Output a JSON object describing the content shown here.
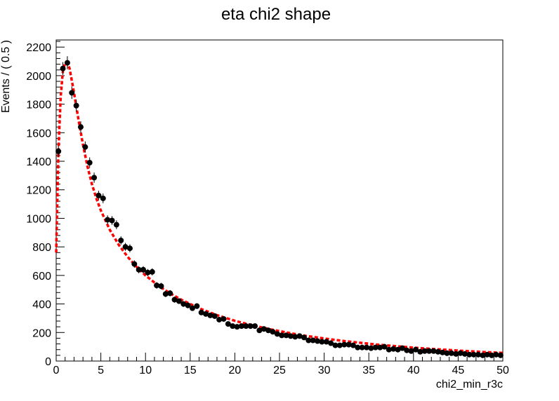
{
  "chart_data": {
    "type": "scatter",
    "title": "eta chi2 shape",
    "xlabel": "chi2_min_r3c",
    "ylabel": "Events / ( 0.5 )",
    "xlim": [
      0,
      50
    ],
    "ylim": [
      0,
      2250
    ],
    "x_ticks": [
      0,
      5,
      10,
      15,
      20,
      25,
      30,
      35,
      40,
      45,
      50
    ],
    "y_ticks": [
      0,
      200,
      400,
      600,
      800,
      1000,
      1200,
      1400,
      1600,
      1800,
      2000,
      2200
    ],
    "grid": false,
    "legend": "none",
    "colors": {
      "data_points": "#000000",
      "fit_curve": "#ff0000"
    },
    "series": [
      {
        "kind": "points_with_errorbars",
        "x": [
          0.25,
          0.75,
          1.25,
          1.75,
          2.25,
          2.75,
          3.25,
          3.75,
          4.25,
          4.75,
          5.25,
          5.75,
          6.25,
          6.75,
          7.25,
          7.75,
          8.25,
          8.75,
          9.25,
          9.75,
          10.25,
          10.75,
          11.25,
          11.75,
          12.25,
          12.75,
          13.25,
          13.75,
          14.25,
          14.75,
          15.25,
          15.75,
          16.25,
          16.75,
          17.25,
          17.75,
          18.25,
          18.75,
          19.25,
          19.75,
          20.25,
          20.75,
          21.25,
          21.75,
          22.25,
          22.75,
          23.25,
          23.75,
          24.25,
          24.75,
          25.25,
          25.75,
          26.25,
          26.75,
          27.25,
          27.75,
          28.25,
          28.75,
          29.25,
          29.75,
          30.25,
          30.75,
          31.25,
          31.75,
          32.25,
          32.75,
          33.25,
          33.75,
          34.25,
          34.75,
          35.25,
          35.75,
          36.25,
          36.75,
          37.25,
          37.75,
          38.25,
          38.75,
          39.25,
          39.75,
          40.25,
          40.75,
          41.25,
          41.75,
          42.25,
          42.75,
          43.25,
          43.75,
          44.25,
          44.75,
          45.25,
          45.75,
          46.25,
          46.75,
          47.25,
          47.75,
          48.25,
          48.75,
          49.25,
          49.75
        ],
        "y": [
          1470,
          2050,
          2090,
          1880,
          1790,
          1640,
          1500,
          1390,
          1285,
          1160,
          1140,
          990,
          985,
          955,
          845,
          800,
          790,
          680,
          640,
          640,
          620,
          625,
          530,
          525,
          470,
          475,
          430,
          420,
          400,
          390,
          370,
          385,
          340,
          330,
          320,
          315,
          290,
          295,
          260,
          245,
          240,
          245,
          245,
          245,
          245,
          215,
          225,
          215,
          205,
          190,
          180,
          180,
          175,
          170,
          175,
          165,
          145,
          145,
          140,
          135,
          135,
          125,
          110,
          110,
          115,
          115,
          110,
          95,
          95,
          95,
          90,
          95,
          95,
          100,
          80,
          85,
          80,
          90,
          75,
          70,
          80,
          65,
          70,
          70,
          70,
          65,
          60,
          55,
          55,
          50,
          55,
          50,
          45,
          45,
          45,
          40,
          45,
          40,
          45,
          40
        ],
        "error": [
          38,
          45,
          46,
          43,
          42,
          40,
          39,
          37,
          36,
          34,
          34,
          31,
          31,
          31,
          29,
          28,
          28,
          26,
          25,
          25,
          25,
          25,
          23,
          23,
          22,
          22,
          21,
          20,
          20,
          20,
          19,
          20,
          18,
          18,
          18,
          18,
          17,
          17,
          16,
          16,
          15,
          16,
          16,
          16,
          16,
          15,
          15,
          15,
          14,
          14,
          13,
          13,
          13,
          13,
          13,
          13,
          12,
          12,
          12,
          12,
          12,
          11,
          10,
          10,
          11,
          11,
          10,
          10,
          10,
          10,
          9,
          10,
          10,
          10,
          9,
          9,
          9,
          9,
          9,
          8,
          9,
          8,
          8,
          8,
          8,
          8,
          8,
          7,
          7,
          7,
          7,
          7,
          7,
          7,
          7,
          6,
          7,
          6,
          7,
          6
        ]
      },
      {
        "kind": "fit_curve",
        "x": [
          0,
          0.25,
          0.5,
          0.75,
          1,
          1.25,
          1.5,
          2,
          2.5,
          3,
          3.5,
          4,
          4.5,
          5,
          6,
          7,
          8,
          9,
          10,
          11,
          12,
          13,
          14,
          15,
          16,
          18,
          20,
          22,
          24,
          26,
          28,
          30,
          32,
          34,
          36,
          38,
          40,
          42,
          44,
          46,
          48,
          50
        ],
        "y": [
          760,
          1470,
          1850,
          2030,
          2090,
          2090,
          2050,
          1880,
          1690,
          1515,
          1365,
          1240,
          1140,
          1055,
          920,
          815,
          730,
          660,
          600,
          550,
          505,
          465,
          430,
          400,
          370,
          322,
          282,
          250,
          222,
          198,
          176,
          158,
          142,
          128,
          115,
          104,
          94,
          85,
          77,
          70,
          63,
          57
        ]
      }
    ]
  }
}
